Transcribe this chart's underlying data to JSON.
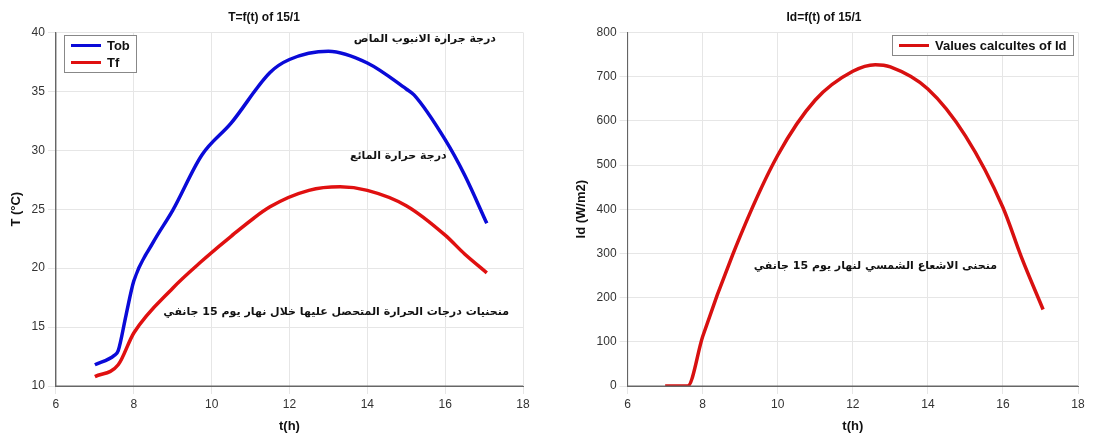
{
  "chart_data": [
    {
      "type": "line",
      "title": "T=f(t) of 15/1",
      "xlabel": "t(h)",
      "ylabel": "T (°C)",
      "xlim": [
        6,
        18
      ],
      "xticks": [
        6,
        8,
        10,
        12,
        14,
        16,
        18
      ],
      "ylim": [
        10,
        40
      ],
      "yticks": [
        10,
        15,
        20,
        25,
        30,
        35,
        40
      ],
      "grid": true,
      "legend": "top left",
      "marker": "none",
      "series": [
        {
          "name": "Tob",
          "color": "#0a0ad8",
          "x": [
            7,
            7.5,
            7.6,
            7.8,
            8,
            8.5,
            9,
            9.75,
            10.5,
            11.5,
            12,
            13,
            14,
            15,
            15.2,
            16,
            16.5,
            17.07
          ],
          "values": [
            11.8,
            12.6,
            13,
            16,
            18.9,
            22.2,
            24.9,
            29.6,
            32.3,
            36.6,
            37.7,
            38.4,
            37.4,
            35.2,
            34.7,
            30.9,
            27.9,
            23.8
          ]
        },
        {
          "name": "Tf",
          "color": "#e01010",
          "x": [
            7,
            7.6,
            8,
            9,
            9.75,
            10.5,
            11.5,
            12.5,
            13.3,
            14,
            15,
            16,
            16.5,
            17.07
          ],
          "values": [
            10.8,
            11.8,
            14.5,
            18.3,
            20.6,
            22.7,
            25.2,
            26.6,
            26.9,
            26.6,
            25.3,
            22.8,
            21.2,
            19.6
          ]
        }
      ],
      "annotations": [
        "درجة جرارة الانبوب الماص",
        "درجة حرارة المائع",
        "منحنيات درجات الحرارة المتحصل عليها خلال نهار يوم 15 جانفي"
      ]
    },
    {
      "type": "line",
      "title": "Id=f(t) of 15/1",
      "xlabel": "t(h)",
      "ylabel": "Id (W/m2)",
      "xlim": [
        6,
        18
      ],
      "xticks": [
        6,
        8,
        10,
        12,
        14,
        16,
        18
      ],
      "ylim": [
        0,
        800
      ],
      "yticks": [
        0,
        100,
        200,
        300,
        400,
        500,
        600,
        700,
        800
      ],
      "grid": true,
      "legend": "top right",
      "marker": "none",
      "series": [
        {
          "name": "Values calcultes of Id",
          "color": "#d81010",
          "x": [
            7,
            7.6,
            8,
            9,
            10,
            11,
            12,
            12.6,
            13,
            14,
            15,
            16,
            16.5,
            17.07
          ],
          "values": [
            0,
            0,
            112,
            339,
            522,
            647,
            712,
            727,
            722,
            672,
            566,
            404,
            290,
            173
          ]
        }
      ],
      "annotations": [
        "منحنى الاشعاع الشمسي لنهار يوم 15 جانفي"
      ]
    }
  ]
}
